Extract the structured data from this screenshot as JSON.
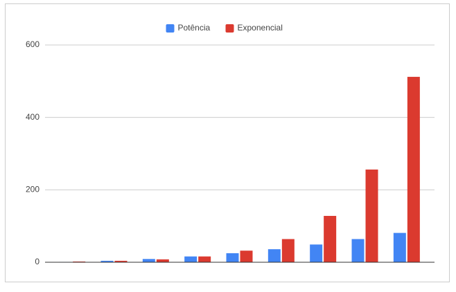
{
  "chart_data": {
    "type": "bar",
    "categories": [
      null,
      null,
      null,
      null,
      null,
      null,
      null,
      null,
      null
    ],
    "series": [
      {
        "name": "Potência",
        "color": "#4285f4",
        "values": [
          1,
          4,
          9,
          16,
          25,
          36,
          49,
          64,
          81
        ]
      },
      {
        "name": "Exponencial",
        "color": "#db3a2f",
        "values": [
          2,
          4,
          8,
          16,
          32,
          64,
          128,
          256,
          512
        ]
      }
    ],
    "ylim": [
      0,
      600
    ],
    "yticks": [
      0,
      200,
      400,
      600
    ],
    "grid": true,
    "legend": "top"
  }
}
